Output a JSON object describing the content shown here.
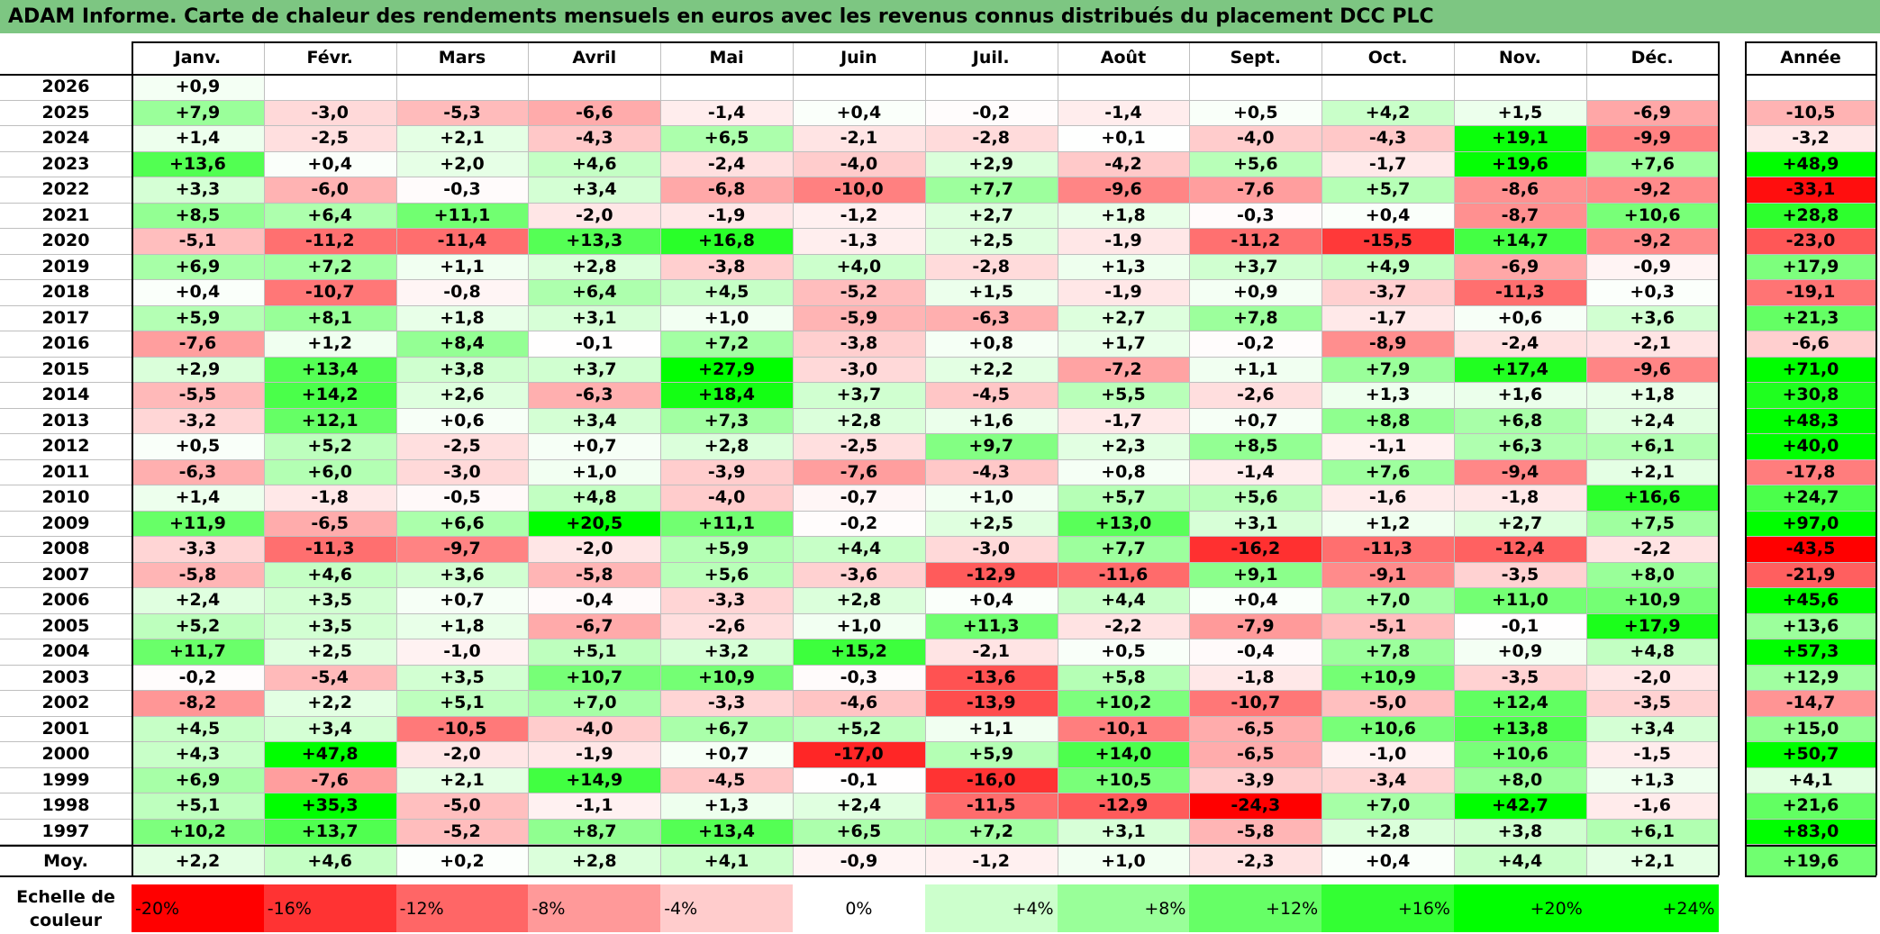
{
  "title": "ADAM Informe. Carte de chaleur des rendements mensuels en euros avec les revenus connus distribués du placement DCC PLC",
  "chart_data": {
    "type": "heatmap",
    "months": [
      "Janv.",
      "Févr.",
      "Mars",
      "Avril",
      "Mai",
      "Juin",
      "Juil.",
      "Août",
      "Sept.",
      "Oct.",
      "Nov.",
      "Déc."
    ],
    "year_header": "Année",
    "rows": [
      {
        "year": "2026",
        "months": [
          "+0,9",
          "",
          "",
          "",
          "",
          "",
          "",
          "",
          "",
          "",
          "",
          ""
        ],
        "annual": ""
      },
      {
        "year": "2025",
        "months": [
          "+7,9",
          "-3,0",
          "-5,3",
          "-6,6",
          "-1,4",
          "+0,4",
          "-0,2",
          "-1,4",
          "+0,5",
          "+4,2",
          "+1,5",
          "-6,9"
        ],
        "annual": "-10,5"
      },
      {
        "year": "2024",
        "months": [
          "+1,4",
          "-2,5",
          "+2,1",
          "-4,3",
          "+6,5",
          "-2,1",
          "-2,8",
          "+0,1",
          "-4,0",
          "-4,3",
          "+19,1",
          "-9,9"
        ],
        "annual": "-3,2"
      },
      {
        "year": "2023",
        "months": [
          "+13,6",
          "+0,4",
          "+2,0",
          "+4,6",
          "-2,4",
          "-4,0",
          "+2,9",
          "-4,2",
          "+5,6",
          "-1,7",
          "+19,6",
          "+7,6"
        ],
        "annual": "+48,9"
      },
      {
        "year": "2022",
        "months": [
          "+3,3",
          "-6,0",
          "-0,3",
          "+3,4",
          "-6,8",
          "-10,0",
          "+7,7",
          "-9,6",
          "-7,6",
          "+5,7",
          "-8,6",
          "-9,2"
        ],
        "annual": "-33,1"
      },
      {
        "year": "2021",
        "months": [
          "+8,5",
          "+6,4",
          "+11,1",
          "-2,0",
          "-1,9",
          "-1,2",
          "+2,7",
          "+1,8",
          "-0,3",
          "+0,4",
          "-8,7",
          "+10,6"
        ],
        "annual": "+28,8"
      },
      {
        "year": "2020",
        "months": [
          "-5,1",
          "-11,2",
          "-11,4",
          "+13,3",
          "+16,8",
          "-1,3",
          "+2,5",
          "-1,9",
          "-11,2",
          "-15,5",
          "+14,7",
          "-9,2"
        ],
        "annual": "-23,0"
      },
      {
        "year": "2019",
        "months": [
          "+6,9",
          "+7,2",
          "+1,1",
          "+2,8",
          "-3,8",
          "+4,0",
          "-2,8",
          "+1,3",
          "+3,7",
          "+4,9",
          "-6,9",
          "-0,9"
        ],
        "annual": "+17,9"
      },
      {
        "year": "2018",
        "months": [
          "+0,4",
          "-10,7",
          "-0,8",
          "+6,4",
          "+4,5",
          "-5,2",
          "+1,5",
          "-1,9",
          "+0,9",
          "-3,7",
          "-11,3",
          "+0,3"
        ],
        "annual": "-19,1"
      },
      {
        "year": "2017",
        "months": [
          "+5,9",
          "+8,1",
          "+1,8",
          "+3,1",
          "+1,0",
          "-5,9",
          "-6,3",
          "+2,7",
          "+7,8",
          "-1,7",
          "+0,6",
          "+3,6"
        ],
        "annual": "+21,3"
      },
      {
        "year": "2016",
        "months": [
          "-7,6",
          "+1,2",
          "+8,4",
          "-0,1",
          "+7,2",
          "-3,8",
          "+0,8",
          "+1,7",
          "-0,2",
          "-8,9",
          "-2,4",
          "-2,1"
        ],
        "annual": "-6,6"
      },
      {
        "year": "2015",
        "months": [
          "+2,9",
          "+13,4",
          "+3,8",
          "+3,7",
          "+27,9",
          "-3,0",
          "+2,2",
          "-7,2",
          "+1,1",
          "+7,9",
          "+17,4",
          "-9,6"
        ],
        "annual": "+71,0"
      },
      {
        "year": "2014",
        "months": [
          "-5,5",
          "+14,2",
          "+2,6",
          "-6,3",
          "+18,4",
          "+3,7",
          "-4,5",
          "+5,5",
          "-2,6",
          "+1,3",
          "+1,6",
          "+1,8"
        ],
        "annual": "+30,8"
      },
      {
        "year": "2013",
        "months": [
          "-3,2",
          "+12,1",
          "+0,6",
          "+3,4",
          "+7,3",
          "+2,8",
          "+1,6",
          "-1,7",
          "+0,7",
          "+8,8",
          "+6,8",
          "+2,4"
        ],
        "annual": "+48,3"
      },
      {
        "year": "2012",
        "months": [
          "+0,5",
          "+5,2",
          "-2,5",
          "+0,7",
          "+2,8",
          "-2,5",
          "+9,7",
          "+2,3",
          "+8,5",
          "-1,1",
          "+6,3",
          "+6,1"
        ],
        "annual": "+40,0"
      },
      {
        "year": "2011",
        "months": [
          "-6,3",
          "+6,0",
          "-3,0",
          "+1,0",
          "-3,9",
          "-7,6",
          "-4,3",
          "+0,8",
          "-1,4",
          "+7,6",
          "-9,4",
          "+2,1"
        ],
        "annual": "-17,8"
      },
      {
        "year": "2010",
        "months": [
          "+1,4",
          "-1,8",
          "-0,5",
          "+4,8",
          "-4,0",
          "-0,7",
          "+1,0",
          "+5,7",
          "+5,6",
          "-1,6",
          "-1,8",
          "+16,6"
        ],
        "annual": "+24,7"
      },
      {
        "year": "2009",
        "months": [
          "+11,9",
          "-6,5",
          "+6,6",
          "+20,5",
          "+11,1",
          "-0,2",
          "+2,5",
          "+13,0",
          "+3,1",
          "+1,2",
          "+2,7",
          "+7,5"
        ],
        "annual": "+97,0"
      },
      {
        "year": "2008",
        "months": [
          "-3,3",
          "-11,3",
          "-9,7",
          "-2,0",
          "+5,9",
          "+4,4",
          "-3,0",
          "+7,7",
          "-16,2",
          "-11,3",
          "-12,4",
          "-2,2"
        ],
        "annual": "-43,5"
      },
      {
        "year": "2007",
        "months": [
          "-5,8",
          "+4,6",
          "+3,6",
          "-5,8",
          "+5,6",
          "-3,6",
          "-12,9",
          "-11,6",
          "+9,1",
          "-9,1",
          "-3,5",
          "+8,0"
        ],
        "annual": "-21,9"
      },
      {
        "year": "2006",
        "months": [
          "+2,4",
          "+3,5",
          "+0,7",
          "-0,4",
          "-3,3",
          "+2,8",
          "+0,4",
          "+4,4",
          "+0,4",
          "+7,0",
          "+11,0",
          "+10,9"
        ],
        "annual": "+45,6"
      },
      {
        "year": "2005",
        "months": [
          "+5,2",
          "+3,5",
          "+1,8",
          "-6,7",
          "-2,6",
          "+1,0",
          "+11,3",
          "-2,2",
          "-7,9",
          "-5,1",
          "-0,1",
          "+17,9"
        ],
        "annual": "+13,6"
      },
      {
        "year": "2004",
        "months": [
          "+11,7",
          "+2,5",
          "-1,0",
          "+5,1",
          "+3,2",
          "+15,2",
          "-2,1",
          "+0,5",
          "-0,4",
          "+7,8",
          "+0,9",
          "+4,8"
        ],
        "annual": "+57,3"
      },
      {
        "year": "2003",
        "months": [
          "-0,2",
          "-5,4",
          "+3,5",
          "+10,7",
          "+10,9",
          "-0,3",
          "-13,6",
          "+5,8",
          "-1,8",
          "+10,9",
          "-3,5",
          "-2,0"
        ],
        "annual": "+12,9"
      },
      {
        "year": "2002",
        "months": [
          "-8,2",
          "+2,2",
          "+5,1",
          "+7,0",
          "-3,3",
          "-4,6",
          "-13,9",
          "+10,2",
          "-10,7",
          "-5,0",
          "+12,4",
          "-3,5"
        ],
        "annual": "-14,7"
      },
      {
        "year": "2001",
        "months": [
          "+4,5",
          "+3,4",
          "-10,5",
          "-4,0",
          "+6,7",
          "+5,2",
          "+1,1",
          "-10,1",
          "-6,5",
          "+10,6",
          "+13,8",
          "+3,4"
        ],
        "annual": "+15,0"
      },
      {
        "year": "2000",
        "months": [
          "+4,3",
          "+47,8",
          "-2,0",
          "-1,9",
          "+0,7",
          "-17,0",
          "+5,9",
          "+14,0",
          "-6,5",
          "-1,0",
          "+10,6",
          "-1,5"
        ],
        "annual": "+50,7"
      },
      {
        "year": "1999",
        "months": [
          "+6,9",
          "-7,6",
          "+2,1",
          "+14,9",
          "-4,5",
          "-0,1",
          "-16,0",
          "+10,5",
          "-3,9",
          "-3,4",
          "+8,0",
          "+1,3"
        ],
        "annual": "+4,1"
      },
      {
        "year": "1998",
        "months": [
          "+5,1",
          "+35,3",
          "-5,0",
          "-1,1",
          "+1,3",
          "+2,4",
          "-11,5",
          "-12,9",
          "-24,3",
          "+7,0",
          "+42,7",
          "-1,6"
        ],
        "annual": "+21,6"
      },
      {
        "year": "1997",
        "months": [
          "+10,2",
          "+13,7",
          "-5,2",
          "+8,7",
          "+13,4",
          "+6,5",
          "+7,2",
          "+3,1",
          "-5,8",
          "+2,8",
          "+3,8",
          "+6,1"
        ],
        "annual": "+83,0"
      }
    ],
    "average": {
      "label": "Moy.",
      "months": [
        "+2,2",
        "+4,6",
        "+0,2",
        "+2,8",
        "+4,1",
        "-0,9",
        "-1,2",
        "+1,0",
        "-2,3",
        "+0,4",
        "+4,4",
        "+2,1"
      ],
      "annual": "+19,6"
    },
    "color_scale": {
      "label": "Echelle de couleur",
      "steps": [
        "-20%",
        "-16%",
        "-12%",
        "-8%",
        "-4%",
        "0%",
        "+4%",
        "+8%",
        "+12%",
        "+16%",
        "+20%",
        "+24%"
      ],
      "step_values": [
        -20,
        -16,
        -12,
        -8,
        -4,
        0,
        4,
        8,
        12,
        16,
        20,
        24
      ],
      "negative_color": "#ff0000",
      "positive_color": "#00ff00",
      "neutral_color": "#ffffff"
    },
    "colors": {
      "title_bg": "#7dc682",
      "grid_line": "#bfbfbf",
      "border": "#000000"
    }
  }
}
